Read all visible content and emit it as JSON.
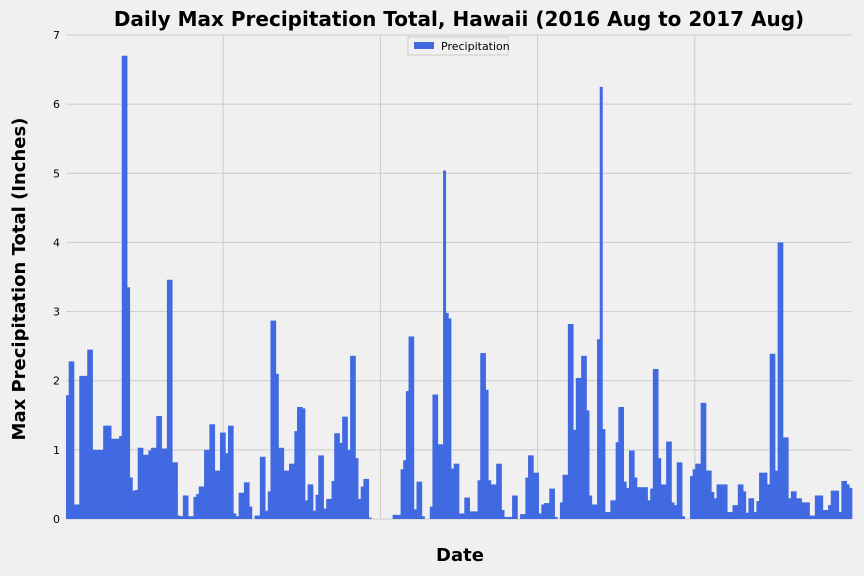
{
  "chart_data": {
    "type": "bar",
    "title": "Daily Max Precipitation Total, Hawaii (2016 Aug to 2017 Aug)",
    "xlabel": "Date",
    "ylabel": "Max Precipitation Total (Inches)",
    "ylim": [
      0,
      7
    ],
    "yticks": [
      "0",
      "1",
      "2",
      "3",
      "4",
      "5",
      "6",
      "7"
    ],
    "grid": true,
    "legend_position": "top-center",
    "series": [
      {
        "name": "Precipitation",
        "color": "#4169e1",
        "values": [
          1.79,
          2.28,
          2.28,
          0.21,
          0.21,
          2.07,
          2.07,
          2.07,
          2.45,
          2.45,
          1.0,
          1.0,
          1.0,
          1.0,
          1.35,
          1.35,
          1.35,
          1.16,
          1.16,
          1.16,
          1.2,
          6.7,
          6.7,
          3.35,
          0.6,
          0.41,
          0.42,
          1.03,
          1.03,
          0.93,
          0.93,
          0.99,
          1.03,
          1.03,
          1.49,
          1.49,
          1.02,
          1.02,
          3.46,
          3.46,
          0.82,
          0.82,
          0.05,
          0.04,
          0.34,
          0.34,
          0.04,
          0.04,
          0.32,
          0.36,
          0.47,
          0.47,
          1.0,
          1.0,
          1.37,
          1.37,
          0.7,
          0.7,
          1.25,
          1.25,
          0.95,
          1.35,
          1.35,
          0.08,
          0.04,
          0.38,
          0.38,
          0.53,
          0.53,
          0.18,
          0.0,
          0.05,
          0.05,
          0.9,
          0.9,
          0.12,
          0.4,
          2.87,
          2.87,
          2.1,
          1.03,
          1.03,
          0.7,
          0.7,
          0.8,
          0.8,
          1.27,
          1.62,
          1.62,
          1.6,
          0.27,
          0.5,
          0.5,
          0.12,
          0.35,
          0.92,
          0.92,
          0.15,
          0.29,
          0.29,
          0.55,
          1.24,
          1.24,
          1.1,
          1.48,
          1.48,
          1.0,
          2.36,
          2.36,
          0.88,
          0.29,
          0.47,
          0.58,
          0.58,
          0.02,
          0.0,
          0.0,
          0.0,
          0.0,
          0.0,
          0.0,
          0.0,
          0.0,
          0.06,
          0.06,
          0.06,
          0.72,
          0.85,
          1.85,
          2.64,
          2.64,
          0.14,
          0.54,
          0.54,
          0.04,
          0.0,
          0.0,
          0.18,
          1.8,
          1.8,
          1.08,
          1.08,
          5.04,
          2.98,
          2.9,
          0.73,
          0.8,
          0.8,
          0.08,
          0.08,
          0.31,
          0.31,
          0.11,
          0.11,
          0.11,
          0.56,
          2.4,
          2.4,
          1.87,
          0.56,
          0.5,
          0.5,
          0.8,
          0.8,
          0.13,
          0.03,
          0.03,
          0.03,
          0.34,
          0.34,
          0.0,
          0.07,
          0.07,
          0.6,
          0.92,
          0.92,
          0.67,
          0.67,
          0.08,
          0.21,
          0.23,
          0.23,
          0.44,
          0.44,
          0.03,
          0.0,
          0.24,
          0.64,
          0.64,
          2.82,
          2.82,
          1.29,
          2.04,
          2.04,
          2.36,
          2.36,
          1.57,
          0.34,
          0.21,
          0.21,
          2.6,
          6.25,
          1.3,
          0.1,
          0.1,
          0.27,
          0.27,
          1.11,
          1.62,
          1.62,
          0.54,
          0.45,
          0.99,
          0.99,
          0.6,
          0.46,
          0.46,
          0.46,
          0.46,
          0.27,
          0.44,
          2.17,
          2.17,
          0.88,
          0.5,
          0.5,
          1.12,
          1.12,
          0.24,
          0.2,
          0.82,
          0.82,
          0.04,
          0.0,
          0.0,
          0.62,
          0.72,
          0.8,
          0.8,
          1.68,
          1.68,
          0.7,
          0.7,
          0.39,
          0.3,
          0.5,
          0.5,
          0.5,
          0.5,
          0.1,
          0.1,
          0.2,
          0.2,
          0.5,
          0.5,
          0.4,
          0.09,
          0.3,
          0.3,
          0.1,
          0.26,
          0.67,
          0.67,
          0.67,
          0.5,
          2.39,
          2.39,
          0.7,
          4.0,
          4.0,
          1.18,
          1.18,
          0.3,
          0.4,
          0.4,
          0.3,
          0.3,
          0.24,
          0.24,
          0.24,
          0.05,
          0.05,
          0.34,
          0.34,
          0.34,
          0.13,
          0.13,
          0.2,
          0.41,
          0.41,
          0.41,
          0.1,
          0.55,
          0.55,
          0.5,
          0.45
        ]
      }
    ]
  }
}
